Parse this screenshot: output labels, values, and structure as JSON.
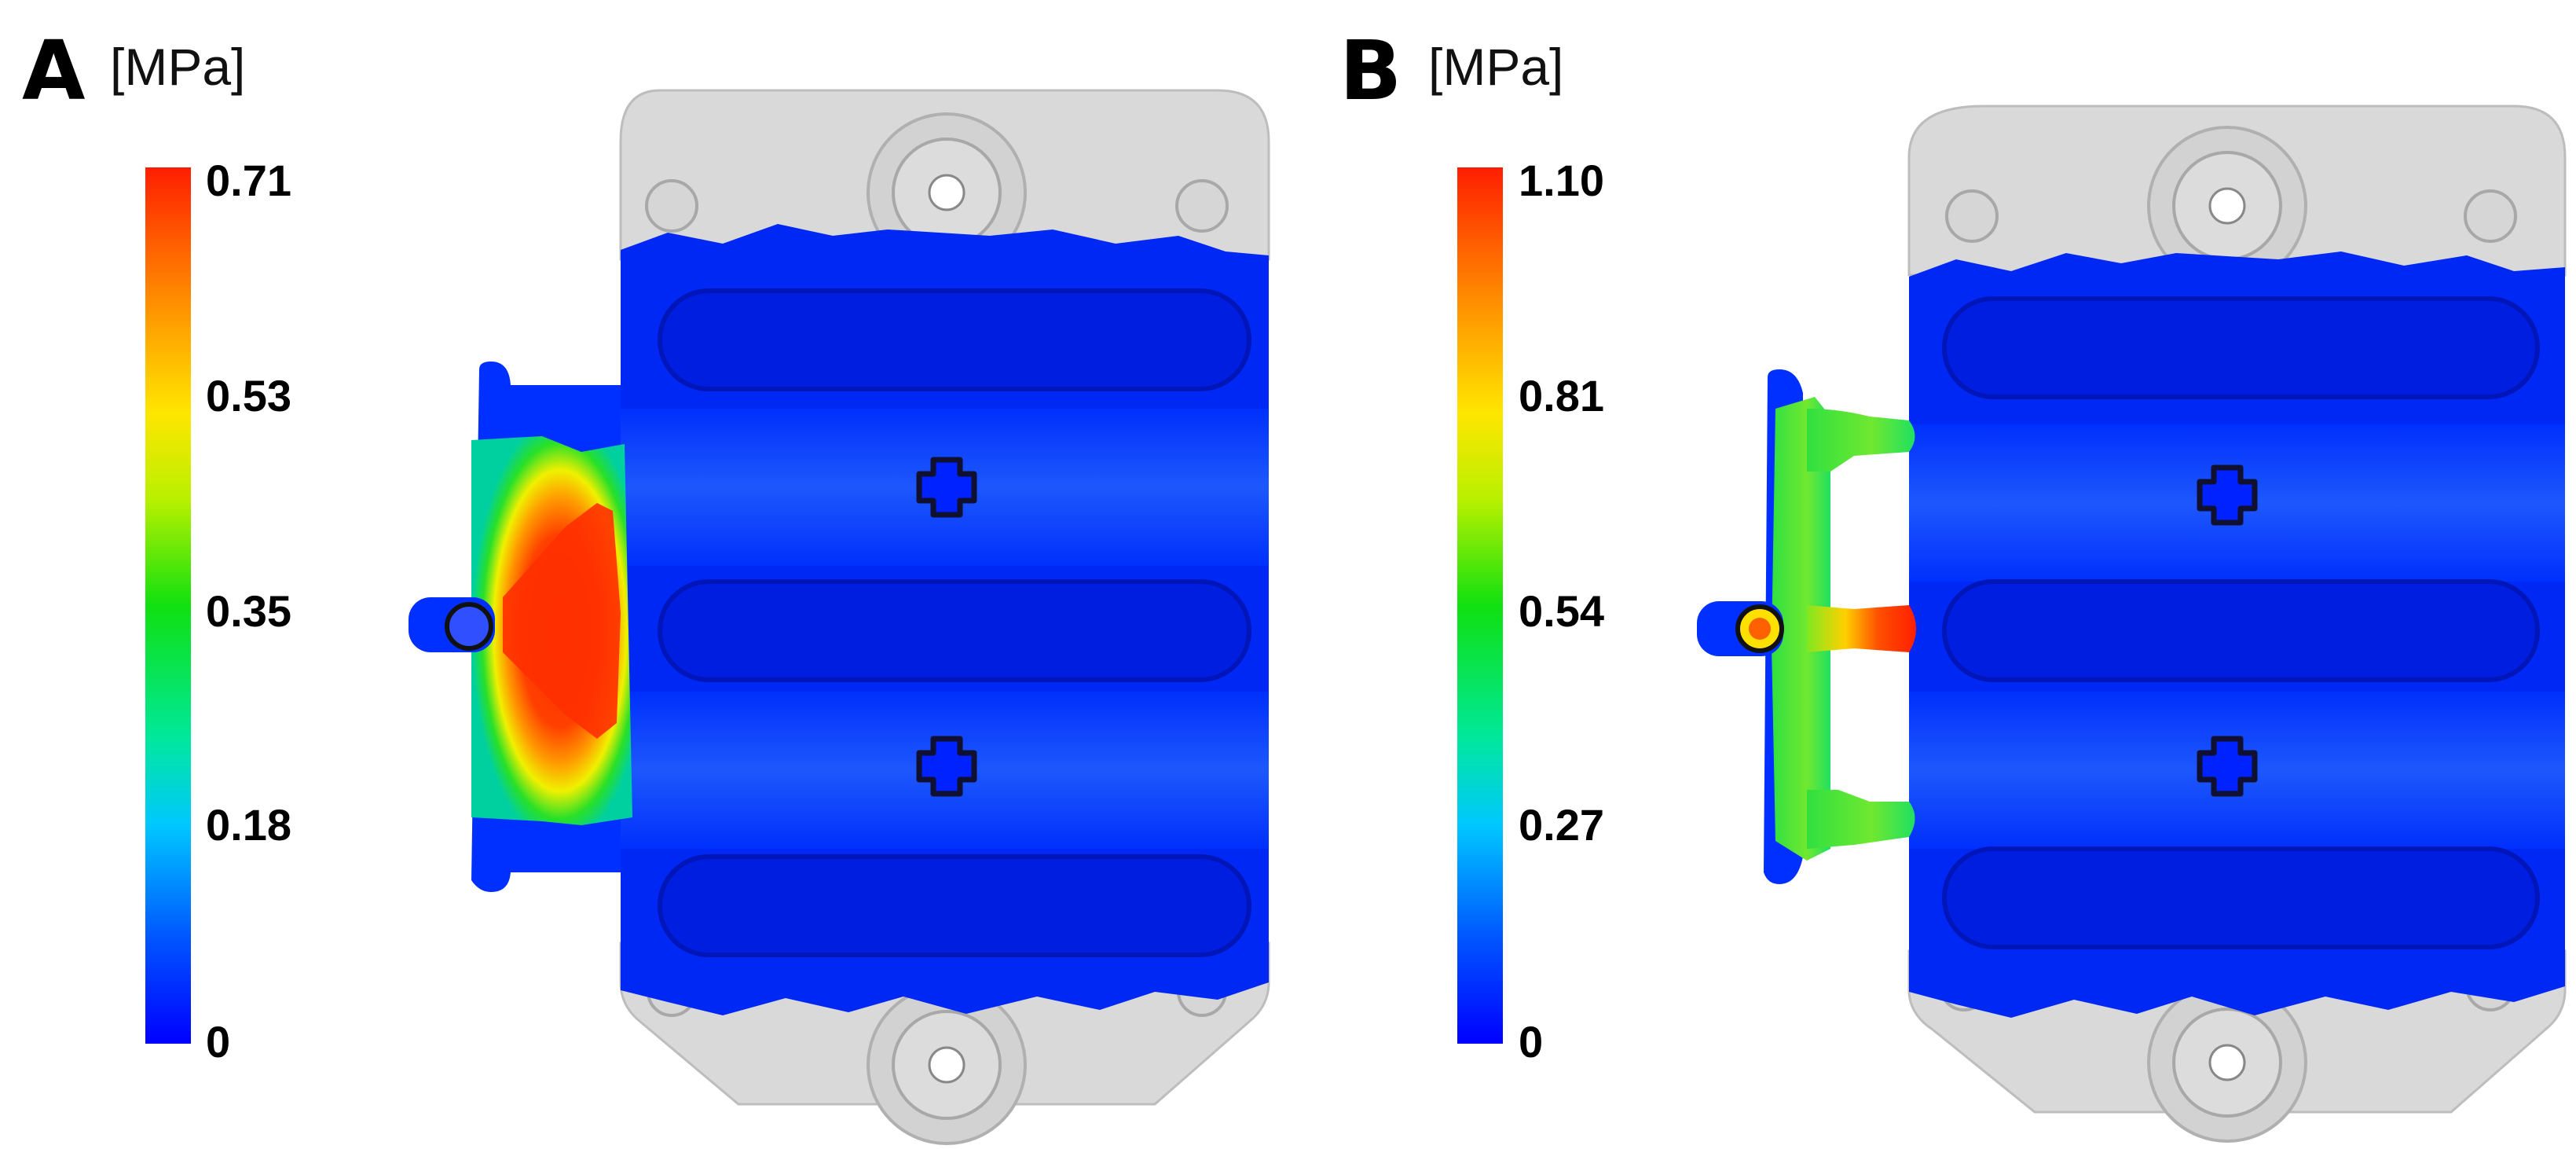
{
  "panels": [
    {
      "letter": "A",
      "unit": "[MPa]",
      "ticks": [
        "0.71",
        "0.53",
        "0.35",
        "0.18",
        "0"
      ],
      "ticks_values": [
        0.71,
        0.53,
        0.35,
        0.18,
        0
      ],
      "range": [
        0,
        0.71
      ]
    },
    {
      "letter": "B",
      "unit": "[MPa]",
      "ticks": [
        "1.10",
        "0.81",
        "0.54",
        "0.27",
        "0"
      ],
      "ticks_values": [
        1.1,
        0.81,
        0.54,
        0.27,
        0
      ],
      "range": [
        0,
        1.1
      ]
    }
  ],
  "colors": {
    "low": "#0000ff",
    "mid": "#10e010",
    "high": "#ff1e00",
    "housing": "#d9d9d9",
    "background": "#ffffff"
  }
}
